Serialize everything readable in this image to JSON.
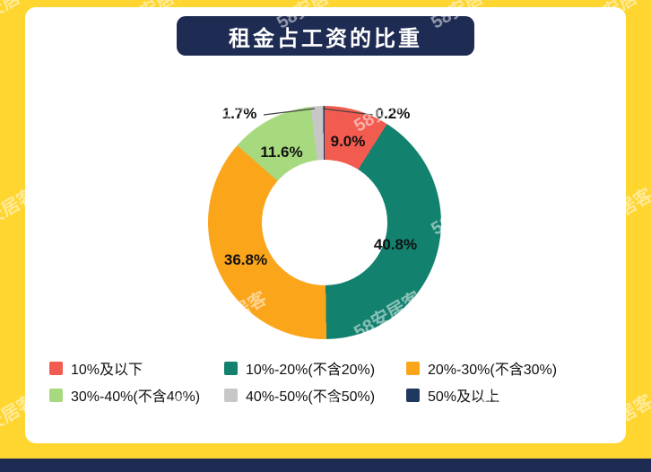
{
  "title": "租金占工资的比重",
  "watermark_text": "58安居客",
  "colors": {
    "background": "#FFD52F",
    "card": "#FFFFFF",
    "banner": "#1E2B52",
    "bottom_bar": "#1E2B52",
    "label_text": "#111111"
  },
  "chart_data": {
    "type": "pie",
    "donut": true,
    "title": "租金占工资的比重",
    "start_angle_deg": 0,
    "direction": "clockwise",
    "legend_position": "bottom",
    "segments": [
      {
        "label": "10%及以下",
        "value": 9.0,
        "display": "9.0%",
        "color": "#F25B4F"
      },
      {
        "label": "10%-20%(不含20%)",
        "value": 40.8,
        "display": "40.8%",
        "color": "#12816E"
      },
      {
        "label": "20%-30%(不含30%)",
        "value": 36.8,
        "display": "36.8%",
        "color": "#FBA51B"
      },
      {
        "label": "30%-40%(不含40%)",
        "value": 11.6,
        "display": "11.6%",
        "color": "#A7D97E"
      },
      {
        "label": "40%-50%(不含50%)",
        "value": 1.7,
        "display": "1.7%",
        "color": "#C7C7C7"
      },
      {
        "label": "50%及以上",
        "value": 0.2,
        "display": "0.2%",
        "color": "#1F3860"
      }
    ]
  }
}
